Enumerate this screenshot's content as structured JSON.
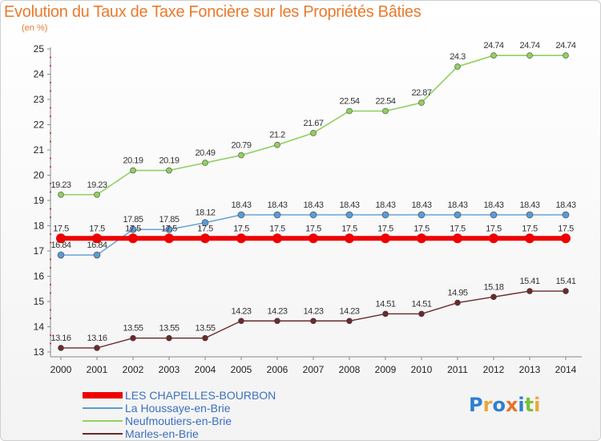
{
  "title": "Evolution du Taux de Taxe Foncière sur les Propriétés Bâties",
  "subtitle": "(en %)",
  "logo": {
    "text": "Proxiti",
    "letters": [
      {
        "ch": "P",
        "color": "#2f7fd1"
      },
      {
        "ch": "r",
        "color": "#e9a93a"
      },
      {
        "ch": "o",
        "color": "#2f7fd1"
      },
      {
        "ch": "x",
        "color": "#e8722c"
      },
      {
        "ch": "i",
        "color": "#2f7fd1"
      },
      {
        "ch": "t",
        "color": "#7bbf3a"
      },
      {
        "ch": "i",
        "color": "#e9a93a"
      }
    ]
  },
  "chart_data": {
    "type": "line",
    "x": [
      2000,
      2001,
      2002,
      2003,
      2004,
      2005,
      2006,
      2007,
      2008,
      2009,
      2010,
      2011,
      2012,
      2013,
      2014
    ],
    "xlim": [
      2000,
      2014
    ],
    "ylim": [
      13,
      25
    ],
    "yticks": [
      13,
      14,
      15,
      16,
      17,
      18,
      19,
      20,
      21,
      22,
      23,
      24,
      25
    ],
    "grid": false,
    "legend_position": "bottom-left",
    "series": [
      {
        "name": "LES CHAPELLES-BOURBON",
        "color": "#ee0000",
        "values": [
          17.5,
          17.5,
          17.5,
          17.5,
          17.5,
          17.5,
          17.5,
          17.5,
          17.5,
          17.5,
          17.5,
          17.5,
          17.5,
          17.5,
          17.5
        ]
      },
      {
        "name": "La Houssaye-en-Brie",
        "color": "#5b9bd5",
        "values": [
          16.84,
          16.84,
          17.85,
          17.85,
          18.12,
          18.43,
          18.43,
          18.43,
          18.43,
          18.43,
          18.43,
          18.43,
          18.43,
          18.43,
          18.43
        ]
      },
      {
        "name": "Neufmoutiers-en-Brie",
        "color": "#90d060",
        "values": [
          19.23,
          19.23,
          20.19,
          20.19,
          20.49,
          20.79,
          21.2,
          21.67,
          22.54,
          22.54,
          22.87,
          24.3,
          24.74,
          24.74,
          24.74
        ]
      },
      {
        "name": "Marles-en-Brie",
        "color": "#6b2a2a",
        "values": [
          13.16,
          13.16,
          13.55,
          13.55,
          13.55,
          14.23,
          14.23,
          14.23,
          14.23,
          14.51,
          14.51,
          14.95,
          15.18,
          15.41,
          15.41
        ]
      }
    ],
    "data_labels": {
      "LES CHAPELLES-BOURBON": [
        "17.5",
        "17.5",
        "17.5",
        "17.5",
        "17.5",
        "17.5",
        "17.5",
        "17.5",
        "17.5",
        "17.5",
        "17.5",
        "17.5",
        "17.5",
        "17.5",
        "17.5"
      ],
      "La Houssaye-en-Brie": [
        "16.84",
        "16.84",
        "17.85",
        "17.85",
        "18.12",
        "18.43",
        "18.43",
        "18.43",
        "18.43",
        "18.43",
        "18.43",
        "18.43",
        "18.43",
        "18.43",
        "18.43"
      ],
      "Neufmoutiers-en-Brie": [
        "19.23",
        "19.23",
        "20.19",
        "20.19",
        "20.49",
        "20.79",
        "21.2",
        "21.67",
        "22.54",
        "22.54",
        "22.87",
        "24.3",
        "24.74",
        "24.74",
        "24.74"
      ],
      "Marles-en-Brie": [
        "13.16",
        "13.16",
        "13.55",
        "13.55",
        "13.55",
        "14.23",
        "14.23",
        "14.23",
        "14.23",
        "14.51",
        "14.51",
        "14.95",
        "15.18",
        "15.41",
        "15.41"
      ]
    }
  }
}
